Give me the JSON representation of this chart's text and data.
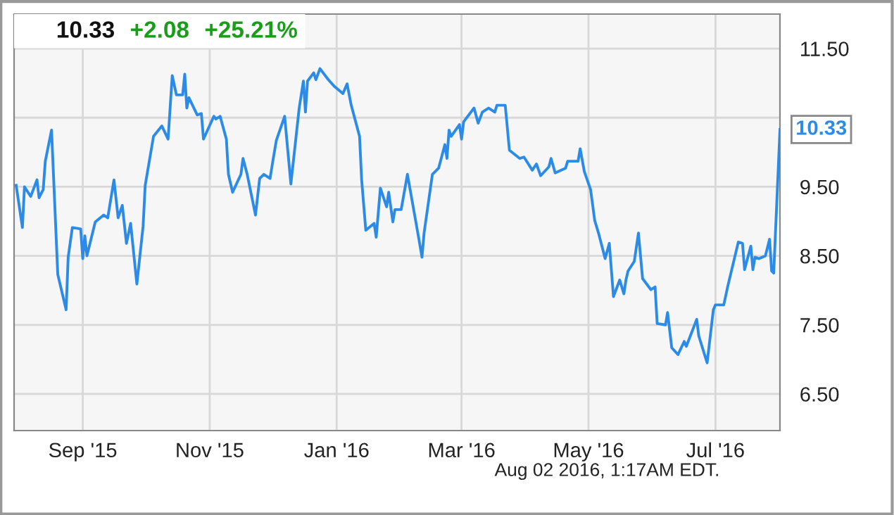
{
  "chart_data": {
    "type": "line",
    "x": [
      "2015-07-31",
      "2015-08-03",
      "2015-08-04",
      "2015-08-07",
      "2015-08-10",
      "2015-08-11",
      "2015-08-13",
      "2015-08-14",
      "2015-08-17",
      "2015-08-20",
      "2015-08-24",
      "2015-08-25",
      "2015-08-27",
      "2015-08-31",
      "2015-09-01",
      "2015-09-02",
      "2015-09-03",
      "2015-09-07",
      "2015-09-11",
      "2015-09-13",
      "2015-09-16",
      "2015-09-18",
      "2015-09-20",
      "2015-09-22",
      "2015-09-24",
      "2015-09-27",
      "2015-09-30",
      "2015-10-01",
      "2015-10-05",
      "2015-10-09",
      "2015-10-12",
      "2015-10-14",
      "2015-10-16",
      "2015-10-19",
      "2015-10-20",
      "2015-10-21",
      "2015-10-22",
      "2015-10-26",
      "2015-10-28",
      "2015-10-29",
      "2015-11-03",
      "2015-11-04",
      "2015-11-06",
      "2015-11-09",
      "2015-11-10",
      "2015-11-12",
      "2015-11-16",
      "2015-11-17",
      "2015-11-19",
      "2015-11-23",
      "2015-11-25",
      "2015-11-27",
      "2015-11-30",
      "2015-12-01",
      "2015-12-03",
      "2015-12-07",
      "2015-12-10",
      "2015-12-14",
      "2015-12-16",
      "2015-12-17",
      "2015-12-18",
      "2015-12-21",
      "2015-12-22",
      "2015-12-24",
      "2015-12-28",
      "2015-12-31",
      "2016-01-04",
      "2016-01-06",
      "2016-01-08",
      "2016-01-12",
      "2016-01-13",
      "2016-01-15",
      "2016-01-19",
      "2016-01-20",
      "2016-01-22",
      "2016-01-25",
      "2016-01-26",
      "2016-01-28",
      "2016-01-29",
      "2016-02-01",
      "2016-02-04",
      "2016-02-09",
      "2016-02-11",
      "2016-02-12",
      "2016-02-16",
      "2016-02-19",
      "2016-02-22",
      "2016-02-23",
      "2016-02-24",
      "2016-02-25",
      "2016-02-29",
      "2016-03-01",
      "2016-03-02",
      "2016-03-07",
      "2016-03-09",
      "2016-03-11",
      "2016-03-14",
      "2016-03-17",
      "2016-03-18",
      "2016-03-22",
      "2016-03-24",
      "2016-03-29",
      "2016-03-31",
      "2016-04-04",
      "2016-04-06",
      "2016-04-08",
      "2016-04-12",
      "2016-04-13",
      "2016-04-15",
      "2016-04-20",
      "2016-04-21",
      "2016-04-26",
      "2016-04-27",
      "2016-04-29",
      "2016-05-02",
      "2016-05-04",
      "2016-05-06",
      "2016-05-09",
      "2016-05-11",
      "2016-05-13",
      "2016-05-16",
      "2016-05-18",
      "2016-05-19",
      "2016-05-20",
      "2016-05-23",
      "2016-05-25",
      "2016-05-27",
      "2016-05-31",
      "2016-06-02",
      "2016-06-03",
      "2016-06-07",
      "2016-06-08",
      "2016-06-10",
      "2016-06-13",
      "2016-06-16",
      "2016-06-17",
      "2016-06-22",
      "2016-06-23",
      "2016-06-27",
      "2016-06-30",
      "2016-07-01",
      "2016-07-05",
      "2016-07-07",
      "2016-07-12",
      "2016-07-14",
      "2016-07-15",
      "2016-07-18",
      "2016-07-19",
      "2016-07-20",
      "2016-07-22",
      "2016-07-25",
      "2016-07-27",
      "2016-07-28",
      "2016-07-29",
      "2016-08-01"
    ],
    "series": [
      {
        "color": "#2b8be6",
        "values": [
          9.52,
          8.91,
          9.5,
          9.36,
          9.6,
          9.34,
          9.46,
          9.87,
          10.32,
          8.23,
          7.72,
          8.48,
          8.91,
          8.89,
          8.46,
          8.79,
          8.5,
          8.99,
          9.09,
          9.05,
          9.6,
          9.05,
          9.23,
          8.68,
          8.97,
          8.09,
          8.93,
          9.52,
          10.23,
          10.38,
          10.19,
          11.11,
          10.83,
          10.83,
          11.13,
          10.64,
          10.79,
          10.54,
          10.56,
          10.19,
          10.52,
          10.48,
          10.52,
          10.19,
          9.68,
          9.42,
          9.68,
          9.91,
          9.68,
          9.09,
          9.62,
          9.68,
          9.62,
          9.81,
          10.17,
          10.52,
          9.54,
          10.64,
          11.03,
          10.58,
          11.03,
          11.15,
          11.05,
          11.21,
          11.05,
          10.95,
          10.85,
          10.99,
          10.68,
          10.23,
          9.6,
          8.87,
          8.97,
          8.77,
          9.48,
          9.21,
          9.42,
          8.99,
          9.17,
          9.17,
          9.68,
          8.83,
          8.48,
          8.83,
          9.68,
          9.77,
          10.11,
          9.91,
          10.32,
          10.23,
          10.4,
          10.19,
          10.44,
          10.64,
          10.42,
          10.58,
          10.64,
          10.58,
          10.68,
          10.68,
          10.03,
          9.91,
          9.93,
          9.74,
          9.83,
          9.66,
          9.79,
          9.91,
          9.7,
          9.77,
          9.87,
          9.87,
          10.05,
          9.72,
          9.46,
          9.01,
          8.81,
          8.46,
          8.68,
          7.91,
          8.15,
          7.95,
          8.15,
          8.28,
          8.42,
          8.83,
          8.17,
          8.01,
          8.05,
          7.52,
          7.5,
          7.68,
          7.17,
          7.07,
          7.26,
          7.19,
          7.58,
          7.34,
          6.95,
          7.72,
          7.79,
          7.79,
          8.07,
          8.7,
          8.68,
          8.3,
          8.64,
          8.3,
          8.48,
          8.46,
          8.5,
          8.74,
          8.28,
          8.25,
          10.33
        ]
      }
    ],
    "xlim": [
      "2015-07-30",
      "2016-08-01"
    ],
    "xticks": [
      {
        "value": "2015-09-01",
        "label": "Sep '15"
      },
      {
        "value": "2015-11-01",
        "label": "Nov '15"
      },
      {
        "value": "2016-01-01",
        "label": "Jan '16"
      },
      {
        "value": "2016-03-01",
        "label": "Mar '16"
      },
      {
        "value": "2016-05-01",
        "label": "May '16"
      },
      {
        "value": "2016-07-01",
        "label": "Jul '16"
      }
    ],
    "ylim": [
      5.97,
      12.0
    ],
    "yticks": [
      {
        "value": 6.5,
        "label": "6.50"
      },
      {
        "value": 7.5,
        "label": "7.50"
      },
      {
        "value": 8.5,
        "label": "8.50"
      },
      {
        "value": 9.5,
        "label": "9.50"
      },
      {
        "value": 10.5,
        "label": null
      },
      {
        "value": 11.5,
        "label": "11.50"
      }
    ],
    "grid": true,
    "marker": "none",
    "line_style": "solid",
    "annotations": [
      "10.33",
      "+2.08",
      "+25.21%",
      "Aug 02 2016, 1:17AM EDT.",
      {
        "text": "10.33",
        "x": "2016-08-01",
        "y": 10.33
      }
    ]
  }
}
